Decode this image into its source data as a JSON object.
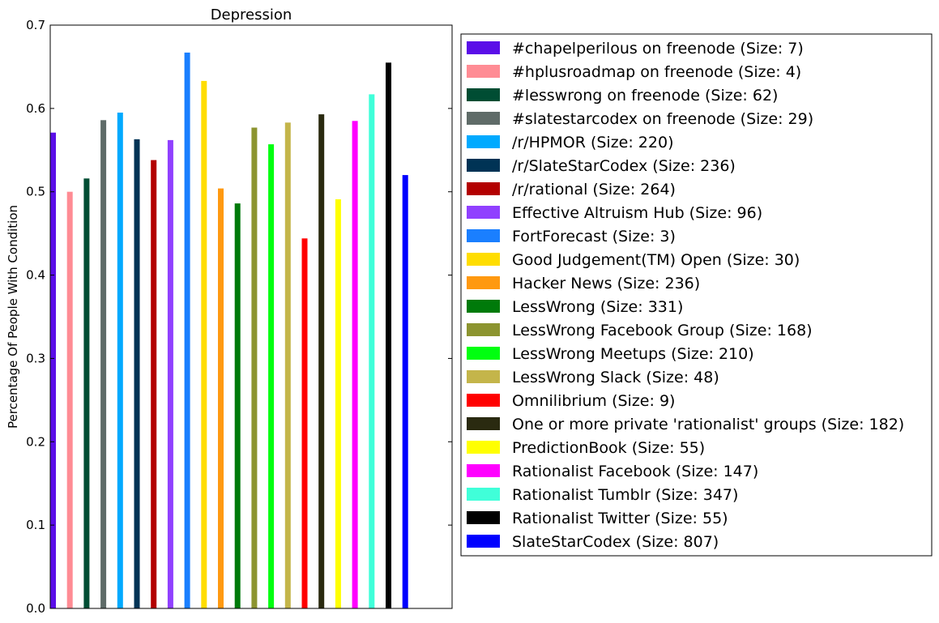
{
  "chart_data": {
    "type": "bar",
    "title": "Depression",
    "xlabel": "",
    "ylabel": "Percentage Of People With Condition",
    "ylim": [
      0,
      0.7
    ],
    "yticks": [
      "0.0",
      "0.1",
      "0.2",
      "0.3",
      "0.4",
      "0.5",
      "0.6",
      "0.7"
    ],
    "legend_position": "right, outside plot",
    "grid": false,
    "series": [
      {
        "name": "#chapelperilous on freenode (Size: 7)",
        "value": 0.571,
        "color": "#5a0ee8"
      },
      {
        "name": "#hplusroadmap on freenode (Size: 4)",
        "value": 0.5,
        "color": "#ff8c94"
      },
      {
        "name": "#lesswrong on freenode (Size: 62)",
        "value": 0.516,
        "color": "#004d33"
      },
      {
        "name": "#slatestarcodex on freenode (Size: 29)",
        "value": 0.586,
        "color": "#5f6b68"
      },
      {
        "name": "/r/HPMOR (Size: 220)",
        "value": 0.595,
        "color": "#00aaff"
      },
      {
        "name": "/r/SlateStarCodex (Size: 236)",
        "value": 0.563,
        "color": "#003355"
      },
      {
        "name": "/r/rational (Size: 264)",
        "value": 0.538,
        "color": "#b30000"
      },
      {
        "name": "Effective Altruism Hub (Size: 96)",
        "value": 0.562,
        "color": "#9040ff"
      },
      {
        "name": "FortForecast (Size: 3)",
        "value": 0.667,
        "color": "#1a7fff"
      },
      {
        "name": "Good Judgement(TM) Open (Size: 30)",
        "value": 0.633,
        "color": "#ffdd00"
      },
      {
        "name": "Hacker News (Size: 236)",
        "value": 0.504,
        "color": "#ff9910"
      },
      {
        "name": "LessWrong (Size: 331)",
        "value": 0.486,
        "color": "#007a0a"
      },
      {
        "name": "LessWrong Facebook Group (Size: 168)",
        "value": 0.577,
        "color": "#8c9430"
      },
      {
        "name": "LessWrong Meetups (Size: 210)",
        "value": 0.557,
        "color": "#00ff10"
      },
      {
        "name": "LessWrong Slack (Size: 48)",
        "value": 0.583,
        "color": "#c4b54a"
      },
      {
        "name": "Omnilibrium (Size: 9)",
        "value": 0.444,
        "color": "#ff0000"
      },
      {
        "name": "One or more private 'rationalist' groups (Size: 182)",
        "value": 0.593,
        "color": "#2a2a10"
      },
      {
        "name": "PredictionBook (Size: 55)",
        "value": 0.491,
        "color": "#ffff00"
      },
      {
        "name": "Rationalist Facebook (Size: 147)",
        "value": 0.585,
        "color": "#ff00ff"
      },
      {
        "name": "Rationalist Tumblr (Size: 347)",
        "value": 0.617,
        "color": "#40ffd9"
      },
      {
        "name": "Rationalist Twitter (Size: 55)",
        "value": 0.655,
        "color": "#000000"
      },
      {
        "name": "SlateStarCodex (Size: 807)",
        "value": 0.52,
        "color": "#0000ff"
      }
    ]
  }
}
